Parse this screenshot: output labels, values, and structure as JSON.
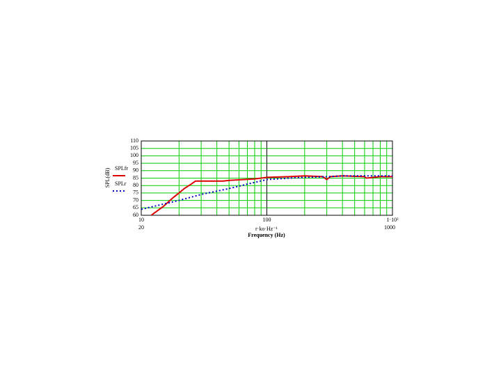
{
  "chart_data": {
    "type": "line",
    "log_x": true,
    "grid": true,
    "grid_color": "#00cc00",
    "y_label": "SPL(dB)",
    "x_expression": "r·ko·Hz⁻¹",
    "x_label": "Frequency (Hz)",
    "x_range_labels": [
      "20",
      "1000"
    ],
    "xlim": [
      10,
      1000
    ],
    "ylim": [
      60,
      110
    ],
    "xticks": [
      10,
      100,
      {
        "value": 1000,
        "label": "1·10³"
      }
    ],
    "yticks": [
      60,
      65,
      70,
      75,
      80,
      85,
      90,
      95,
      100,
      105,
      110
    ],
    "series": [
      {
        "name": "SPLfr",
        "color": "#dd0000",
        "dash": false,
        "x": [
          12,
          15,
          18,
          20,
          22,
          25,
          27,
          45,
          50,
          80,
          100,
          150,
          200,
          280,
          300,
          320,
          400,
          600,
          620,
          800,
          1000
        ],
        "values": [
          60,
          66,
          72,
          75,
          78,
          81,
          83,
          83,
          83.5,
          84.5,
          85.5,
          86,
          86.5,
          86,
          84,
          86,
          86.5,
          86,
          85,
          86,
          86
        ]
      },
      {
        "name": "SPLr",
        "color": "#0000cc",
        "dash": true,
        "x": [
          10,
          15,
          20,
          30,
          50,
          70,
          100,
          150,
          200,
          300,
          400,
          600,
          1000
        ],
        "values": [
          64,
          67.5,
          70,
          74,
          78,
          81,
          84,
          85,
          85.5,
          86,
          86.5,
          86.5,
          86.5
        ]
      }
    ]
  }
}
